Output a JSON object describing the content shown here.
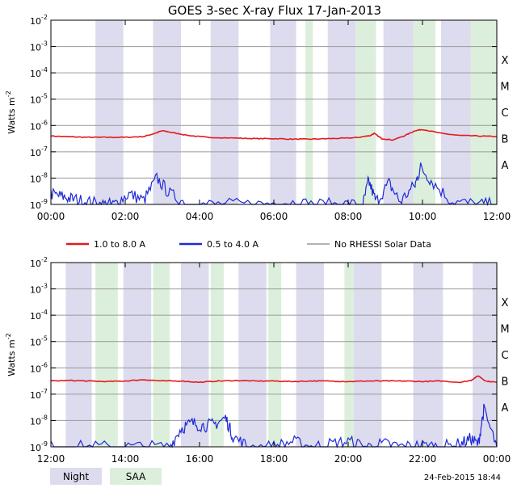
{
  "title": "GOES 3-sec X-ray Flux    17-Jan-2013",
  "timestamp": "24-Feb-2015 18:44",
  "colors": {
    "long_channel": "#e41a1c",
    "short_channel": "#1f2ad6",
    "no_rhessi": "#9a9a9a",
    "night_band": "#dcdcee",
    "saa_band": "#dcefdc",
    "grid": "#9a9a9a"
  },
  "legend": {
    "series": [
      {
        "label": "1.0 to 8.0 A",
        "color": "#e41a1c"
      },
      {
        "label": "0.5 to 4.0 A",
        "color": "#1f2ad6"
      },
      {
        "label": "No RHESSI Solar Data",
        "color": "#9a9a9a"
      }
    ],
    "shading": [
      {
        "label": "Night",
        "color": "#dcdcee"
      },
      {
        "label": "SAA",
        "color": "#dcefdc"
      }
    ]
  },
  "chart_data": [
    {
      "type": "line",
      "ylabel": "Watts m",
      "ylabel_sup": "-2",
      "yscale": "log",
      "ylim_exp": [
        -9,
        -2
      ],
      "ytick_exponents": [
        -9,
        -8,
        -7,
        -6,
        -5,
        -4,
        -3,
        -2
      ],
      "class_labels": [
        {
          "label": "A",
          "exp": -8
        },
        {
          "label": "B",
          "exp": -7
        },
        {
          "label": "C",
          "exp": -6
        },
        {
          "label": "M",
          "exp": -5
        },
        {
          "label": "X",
          "exp": -4
        }
      ],
      "xlim_hours": [
        0,
        12
      ],
      "xtick_labels": [
        "00:00",
        "02:00",
        "04:00",
        "06:00",
        "08:00",
        "10:00",
        "12:00"
      ],
      "night_bands_hours": [
        [
          1.2,
          1.95
        ],
        [
          2.75,
          3.5
        ],
        [
          4.3,
          5.05
        ],
        [
          5.9,
          6.6
        ],
        [
          7.45,
          8.2
        ],
        [
          8.95,
          9.75
        ],
        [
          10.5,
          11.3
        ]
      ],
      "saa_bands_hours": [
        [
          6.85,
          7.05
        ],
        [
          8.2,
          8.75
        ],
        [
          9.75,
          10.35
        ],
        [
          11.3,
          12.0
        ]
      ],
      "series": [
        {
          "name": "1.0 to 8.0 A",
          "x_hours": [
            0,
            0.5,
            1.0,
            1.5,
            2.0,
            2.5,
            2.8,
            3.0,
            3.3,
            3.7,
            4.2,
            5.0,
            5.5,
            6.0,
            6.5,
            7.0,
            7.5,
            8.0,
            8.3,
            8.6,
            8.7,
            8.9,
            9.2,
            9.5,
            9.8,
            10.0,
            10.5,
            11.0,
            11.5,
            12.0
          ],
          "y_log10": [
            -6.4,
            -6.43,
            -6.45,
            -6.45,
            -6.45,
            -6.42,
            -6.3,
            -6.2,
            -6.28,
            -6.38,
            -6.45,
            -6.48,
            -6.5,
            -6.5,
            -6.52,
            -6.52,
            -6.5,
            -6.48,
            -6.45,
            -6.38,
            -6.3,
            -6.5,
            -6.55,
            -6.4,
            -6.2,
            -6.15,
            -6.3,
            -6.38,
            -6.4,
            -6.42
          ]
        },
        {
          "name": "0.5 to 4.0 A",
          "x_hours": [
            0,
            0.3,
            0.6,
            1.0,
            1.4,
            1.7,
            2.1,
            2.5,
            2.85,
            3.2,
            3.7,
            4.5,
            5.5,
            6.3,
            7.0,
            7.8,
            8.4,
            8.55,
            8.75,
            9.1,
            9.4,
            9.8,
            9.95,
            10.3,
            10.8,
            11.5,
            12.0
          ],
          "y_log10": [
            -8.6,
            -8.7,
            -8.8,
            -8.9,
            -9.0,
            -9.0,
            -8.6,
            -8.85,
            -8.0,
            -8.6,
            -9.0,
            -9.0,
            -9.0,
            -8.9,
            -9.0,
            -9.0,
            -9.0,
            -8.1,
            -8.9,
            -8.2,
            -8.9,
            -8.25,
            -7.6,
            -8.2,
            -8.9,
            -9.0,
            -9.0
          ]
        }
      ]
    },
    {
      "type": "line",
      "ylabel": "Watts m",
      "ylabel_sup": "-2",
      "yscale": "log",
      "ylim_exp": [
        -9,
        -2
      ],
      "ytick_exponents": [
        -9,
        -8,
        -7,
        -6,
        -5,
        -4,
        -3,
        -2
      ],
      "class_labels": [
        {
          "label": "A",
          "exp": -8
        },
        {
          "label": "B",
          "exp": -7
        },
        {
          "label": "C",
          "exp": -6
        },
        {
          "label": "M",
          "exp": -5
        },
        {
          "label": "X",
          "exp": -4
        }
      ],
      "xlim_hours": [
        12,
        24
      ],
      "xtick_labels": [
        "12:00",
        "14:00",
        "16:00",
        "18:00",
        "20:00",
        "22:00",
        "00:00"
      ],
      "night_bands_hours": [
        [
          12.4,
          13.1
        ],
        [
          13.95,
          14.7
        ],
        [
          15.5,
          16.25
        ],
        [
          17.05,
          17.8
        ],
        [
          18.6,
          19.35
        ],
        [
          20.15,
          20.9
        ],
        [
          21.75,
          22.55
        ],
        [
          23.35,
          24.0
        ]
      ],
      "saa_bands_hours": [
        [
          13.2,
          13.8
        ],
        [
          14.75,
          15.2
        ],
        [
          16.3,
          16.65
        ],
        [
          17.85,
          18.2
        ],
        [
          19.9,
          20.15
        ]
      ],
      "series": [
        {
          "name": "1.0 to 8.0 A",
          "x_hours": [
            12,
            12.5,
            13.0,
            13.5,
            14.0,
            14.5,
            15.0,
            15.5,
            16.0,
            16.5,
            17.0,
            17.5,
            18.0,
            18.5,
            19.0,
            19.5,
            20.0,
            20.5,
            21.0,
            21.5,
            22.0,
            22.5,
            23.0,
            23.3,
            23.5,
            23.7,
            24.0
          ],
          "y_log10": [
            -6.5,
            -6.48,
            -6.5,
            -6.52,
            -6.5,
            -6.45,
            -6.5,
            -6.5,
            -6.55,
            -6.5,
            -6.48,
            -6.5,
            -6.5,
            -6.52,
            -6.5,
            -6.5,
            -6.52,
            -6.5,
            -6.5,
            -6.5,
            -6.52,
            -6.5,
            -6.55,
            -6.48,
            -6.3,
            -6.5,
            -6.55
          ]
        },
        {
          "name": "0.5 to 4.0 A",
          "x_hours": [
            12,
            12.8,
            13.6,
            14.4,
            15.2,
            15.5,
            15.8,
            16.1,
            16.4,
            16.7,
            16.9,
            17.3,
            18.0,
            18.5,
            19.0,
            19.5,
            20.0,
            20.5,
            21.0,
            21.5,
            22.0,
            22.5,
            23.0,
            23.3,
            23.5,
            23.65,
            24.0
          ],
          "y_log10": [
            -9.0,
            -9.0,
            -9.0,
            -9.0,
            -9.0,
            -8.3,
            -8.1,
            -8.2,
            -8.15,
            -7.9,
            -8.6,
            -9.0,
            -9.0,
            -8.8,
            -9.0,
            -8.9,
            -8.8,
            -9.0,
            -8.9,
            -9.0,
            -8.95,
            -9.0,
            -8.9,
            -8.7,
            -8.9,
            -7.6,
            -9.0
          ]
        }
      ]
    }
  ]
}
